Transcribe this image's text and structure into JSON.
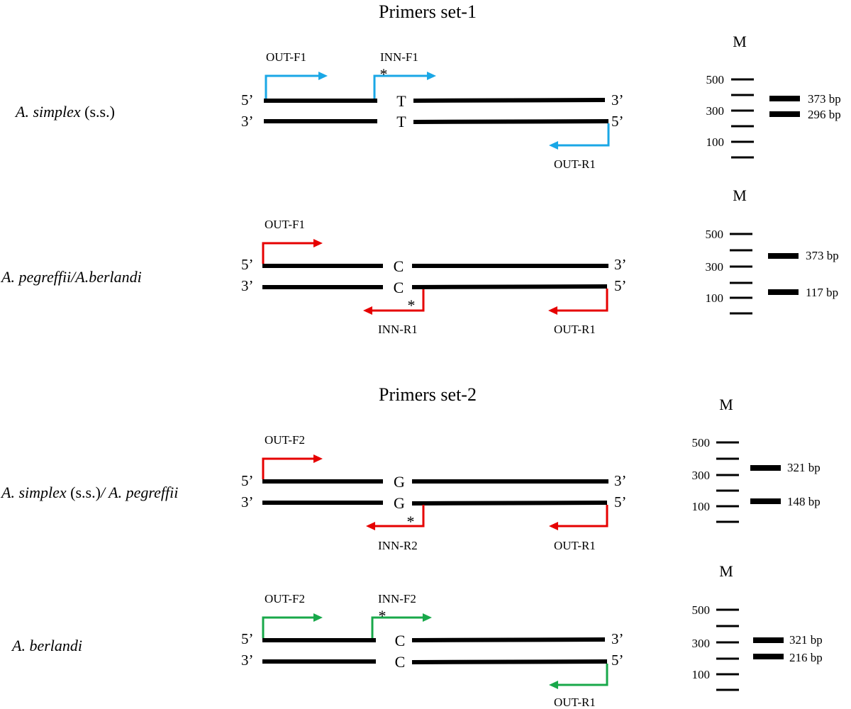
{
  "titles": {
    "set1": "Primers set-1",
    "set2": "Primers set-2"
  },
  "colors": {
    "blue": "#1aa7e6",
    "red": "#e60000",
    "green": "#18a84a",
    "strand": "#000000"
  },
  "icons": {
    "primer": "right-angle-arrow",
    "mismatch": "asterisk"
  },
  "panels": [
    {
      "id": "panel-1",
      "species": [
        {
          "text": "A. simplex",
          "italic": true
        },
        {
          "text": " (s.s.)",
          "italic": false
        }
      ],
      "top_left": "5’",
      "top_right": "3’",
      "bottom_left": "3’",
      "bottom_right": "5’",
      "base": "T",
      "color": "blue",
      "primers": [
        {
          "label": "OUT-F1",
          "star": false
        },
        {
          "label": "INN-F1",
          "star": true
        },
        {
          "label": "OUT-R1",
          "star": false
        }
      ],
      "gel": {
        "marker_label": "M",
        "sizes": [
          "500",
          "300",
          "100"
        ],
        "bands": [
          "373 bp",
          "296 bp"
        ]
      }
    },
    {
      "id": "panel-2",
      "species": [
        {
          "text": "A. pegreffii/A.berlandi",
          "italic": true
        }
      ],
      "top_left": "5’",
      "top_right": "3’",
      "bottom_left": "3’",
      "bottom_right": "5’",
      "base": "C",
      "color": "red",
      "primers": [
        {
          "label": "OUT-F1",
          "star": false
        },
        {
          "label": "INN-R1",
          "star": true
        },
        {
          "label": "OUT-R1",
          "star": false
        }
      ],
      "gel": {
        "marker_label": "M",
        "sizes": [
          "500",
          "300",
          "100"
        ],
        "bands": [
          "373 bp",
          "117 bp"
        ]
      }
    },
    {
      "id": "panel-3",
      "species": [
        {
          "text": "A. simplex",
          "italic": true
        },
        {
          "text": " (s.s.)",
          "italic": false
        },
        {
          "text": "/ A. pegreffii",
          "italic": true
        }
      ],
      "top_left": "5’",
      "top_right": "3’",
      "bottom_left": "3’",
      "bottom_right": "5’",
      "base": "G",
      "color": "red",
      "primers": [
        {
          "label": "OUT-F2",
          "star": false
        },
        {
          "label": "INN-R2",
          "star": true
        },
        {
          "label": "OUT-R1",
          "star": false
        }
      ],
      "gel": {
        "marker_label": "M",
        "sizes": [
          "500",
          "300",
          "100"
        ],
        "bands": [
          "321 bp",
          "148 bp"
        ]
      }
    },
    {
      "id": "panel-4",
      "species": [
        {
          "text": "A. berlandi",
          "italic": true
        }
      ],
      "top_left": "5’",
      "top_right": "3’",
      "bottom_left": "3’",
      "bottom_right": "5’",
      "base": "C",
      "color": "green",
      "primers": [
        {
          "label": "OUT-F2",
          "star": false
        },
        {
          "label": "INN-F2",
          "star": true
        },
        {
          "label": "OUT-R1",
          "star": false
        }
      ],
      "gel": {
        "marker_label": "M",
        "sizes": [
          "500",
          "300",
          "100"
        ],
        "bands": [
          "321 bp",
          "216 bp"
        ]
      }
    }
  ]
}
